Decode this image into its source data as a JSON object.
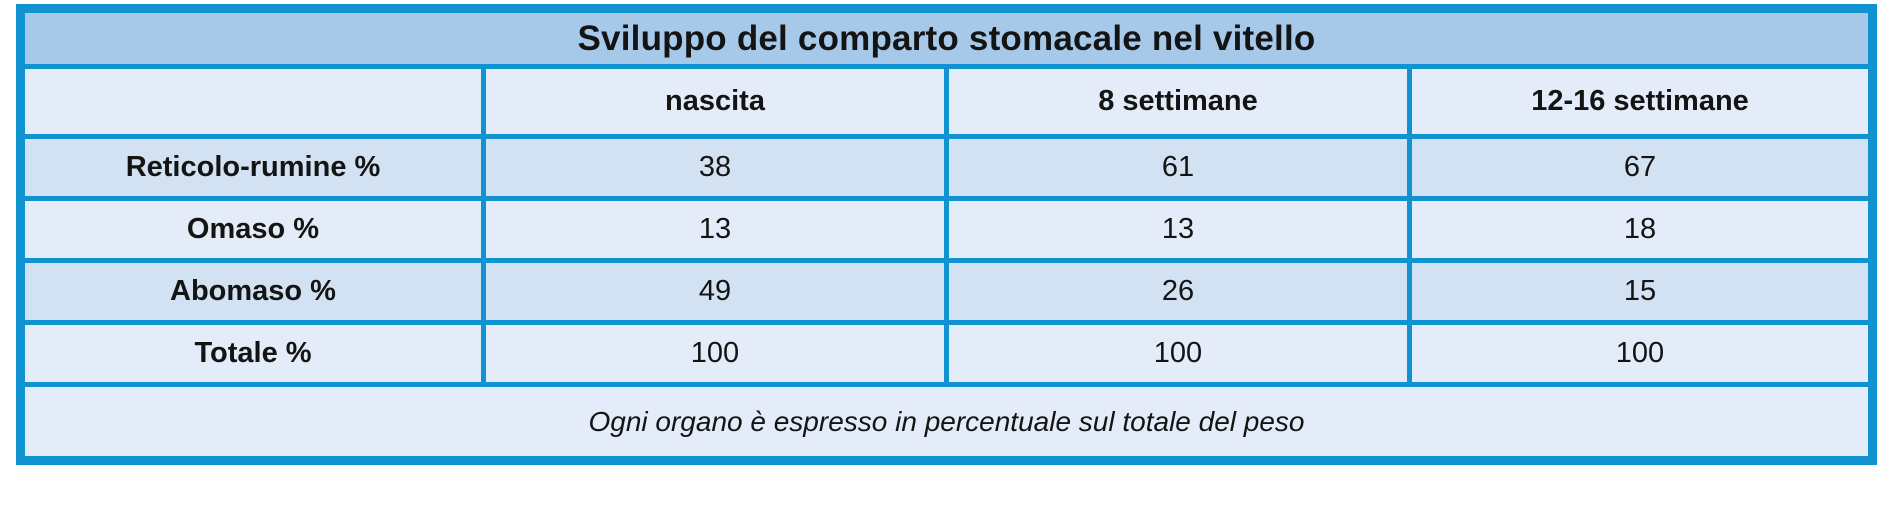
{
  "title": "Sviluppo del comparto stomacale nel vitello",
  "table": {
    "columns": [
      "",
      "nascita",
      "8 settimane",
      "12-16 settimane"
    ],
    "rows": [
      {
        "label": "Reticolo-rumine %",
        "values": [
          "38",
          "61",
          "67"
        ]
      },
      {
        "label": "Omaso %",
        "values": [
          "13",
          "13",
          "18"
        ]
      },
      {
        "label": "Abomaso %",
        "values": [
          "49",
          "26",
          "15"
        ]
      },
      {
        "label": "Totale %",
        "values": [
          "100",
          "100",
          "100"
        ]
      }
    ],
    "footnote": "Ogni organo è espresso in percentuale sul totale del peso"
  },
  "colors": {
    "border": "#1193d2",
    "title_bg": "#a6c9ea",
    "row_light": "#e3ecf8",
    "row_dark": "#d2e2f3",
    "text": "#141414",
    "page_bg": "#ffffff"
  },
  "chart_data": {
    "type": "table",
    "title": "Sviluppo del comparto stomacale nel vitello",
    "columns": [
      "nascita",
      "8 settimane",
      "12-16 settimane"
    ],
    "rows": [
      {
        "label": "Reticolo-rumine %",
        "values": [
          38,
          61,
          67
        ]
      },
      {
        "label": "Omaso %",
        "values": [
          13,
          13,
          18
        ]
      },
      {
        "label": "Abomaso %",
        "values": [
          49,
          26,
          15
        ]
      },
      {
        "label": "Totale %",
        "values": [
          100,
          100,
          100
        ]
      }
    ],
    "footnote": "Ogni organo è espresso in percentuale sul totale del peso",
    "units": "percent of total stomach weight"
  }
}
